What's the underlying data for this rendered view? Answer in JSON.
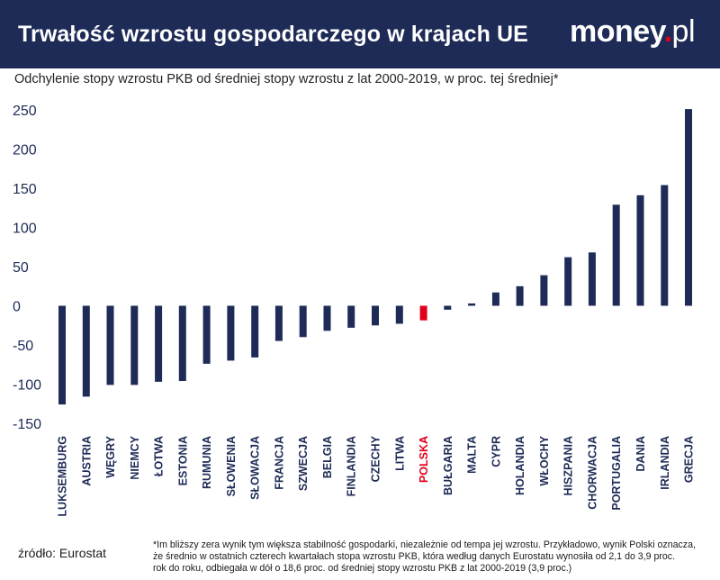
{
  "header": {
    "title": "Trwałość wzrostu gospodarczego w krajach UE",
    "logo_main": "money",
    "logo_dot": ".",
    "logo_suffix": "pl"
  },
  "colors": {
    "header_bg": "#1e2b57",
    "bar": "#1e2b57",
    "highlight": "#e1001a",
    "axis_text": "#1e2b57"
  },
  "chart_data": {
    "type": "bar",
    "title": "Trwałość wzrostu gospodarczego w krajach UE",
    "subtitle": "Odchylenie stopy wzrostu PKB od średniej stopy wzrostu z lat 2000-2019, w proc. tej średniej*",
    "xlabel": "",
    "ylabel": "",
    "ylim": [
      -150,
      250
    ],
    "yticks": [
      250,
      200,
      150,
      100,
      50,
      0,
      -50,
      -100,
      -150
    ],
    "grid": false,
    "highlight_category": "POLSKA",
    "categories": [
      "LUKSEMBURG",
      "AUSTRIA",
      "WĘGRY",
      "NIEMCY",
      "ŁOTWA",
      "ESTONIA",
      "RUMUNIA",
      "SŁOWENIA",
      "SŁOWACJA",
      "FRANCJA",
      "SZWECJA",
      "BELGIA",
      "FINLANDIA",
      "CZECHY",
      "LITWA",
      "POLSKA",
      "BUŁGARIA",
      "MALTA",
      "CYPR",
      "HOLANDIA",
      "WŁOCHY",
      "HISZPANIA",
      "CHORWACJA",
      "PORTUGALIA",
      "DANIA",
      "IRLANDIA",
      "GRECJA"
    ],
    "values": [
      -126,
      -116,
      -101,
      -101,
      -97,
      -96,
      -74,
      -70,
      -66,
      -45,
      -40,
      -32,
      -28,
      -25,
      -23,
      -18.6,
      -5,
      3,
      17,
      25,
      39,
      62,
      68,
      129,
      141,
      154,
      251
    ]
  },
  "footer": {
    "source": "źródło: Eurostat",
    "footnote_lines": [
      "*Im bliższy zera wynik tym większa stabilność gospodarki, niezależnie od tempa jej wzrostu. Przykładowo, wynik Polski oznacza,",
      "że średnio w ostatnich czterech kwartałach stopa wzrostu PKB, która według danych Eurostatu wynosiła od 2,1 do 3,9 proc.",
      "rok do roku, odbiegała w dół o 18,6 proc. od średniej stopy wzrostu PKB z lat 2000-2019 (3,9 proc.)"
    ]
  }
}
